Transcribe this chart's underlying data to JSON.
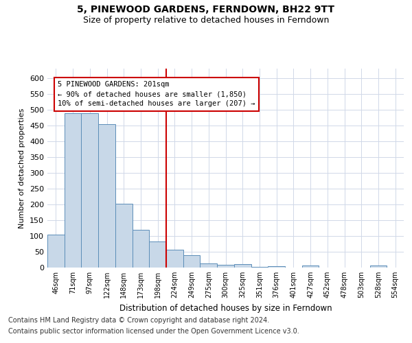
{
  "title": "5, PINEWOOD GARDENS, FERNDOWN, BH22 9TT",
  "subtitle": "Size of property relative to detached houses in Ferndown",
  "xlabel": "Distribution of detached houses by size in Ferndown",
  "ylabel": "Number of detached properties",
  "categories": [
    "46sqm",
    "71sqm",
    "97sqm",
    "122sqm",
    "148sqm",
    "173sqm",
    "198sqm",
    "224sqm",
    "249sqm",
    "275sqm",
    "300sqm",
    "325sqm",
    "351sqm",
    "376sqm",
    "401sqm",
    "427sqm",
    "452sqm",
    "478sqm",
    "503sqm",
    "528sqm",
    "554sqm"
  ],
  "values": [
    105,
    488,
    488,
    453,
    202,
    120,
    82,
    57,
    40,
    14,
    9,
    10,
    3,
    5,
    0,
    6,
    0,
    0,
    0,
    6,
    0
  ],
  "bar_color": "#c8d8e8",
  "bar_edge_color": "#5b8db8",
  "vline_x_idx": 6,
  "vline_color": "#cc0000",
  "annotation_text": "5 PINEWOOD GARDENS: 201sqm\n← 90% of detached houses are smaller (1,850)\n10% of semi-detached houses are larger (207) →",
  "annotation_box_color": "#cc0000",
  "ylim": [
    0,
    630
  ],
  "yticks": [
    0,
    50,
    100,
    150,
    200,
    250,
    300,
    350,
    400,
    450,
    500,
    550,
    600
  ],
  "footer_line1": "Contains HM Land Registry data © Crown copyright and database right 2024.",
  "footer_line2": "Contains public sector information licensed under the Open Government Licence v3.0.",
  "title_fontsize": 10,
  "subtitle_fontsize": 9,
  "footer_fontsize": 7,
  "grid_color": "#d0d8e8"
}
